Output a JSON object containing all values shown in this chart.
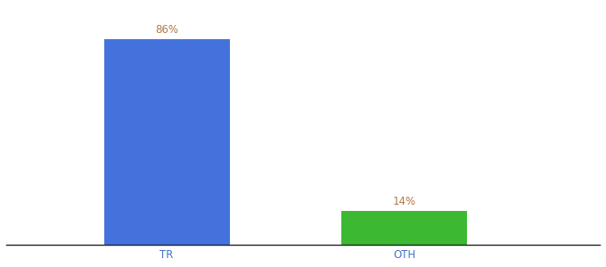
{
  "categories": [
    "TR",
    "OTH"
  ],
  "values": [
    86,
    14
  ],
  "bar_colors": [
    "#4472dd",
    "#3cb832"
  ],
  "label_color": "#b07840",
  "label_fontsize": 8.5,
  "tick_fontsize": 8.5,
  "tick_color": "#4472cc",
  "background_color": "#ffffff",
  "ylim": [
    0,
    100
  ],
  "bar_width": 0.18,
  "labels": [
    "86%",
    "14%"
  ],
  "x_positions": [
    0.28,
    0.62
  ]
}
